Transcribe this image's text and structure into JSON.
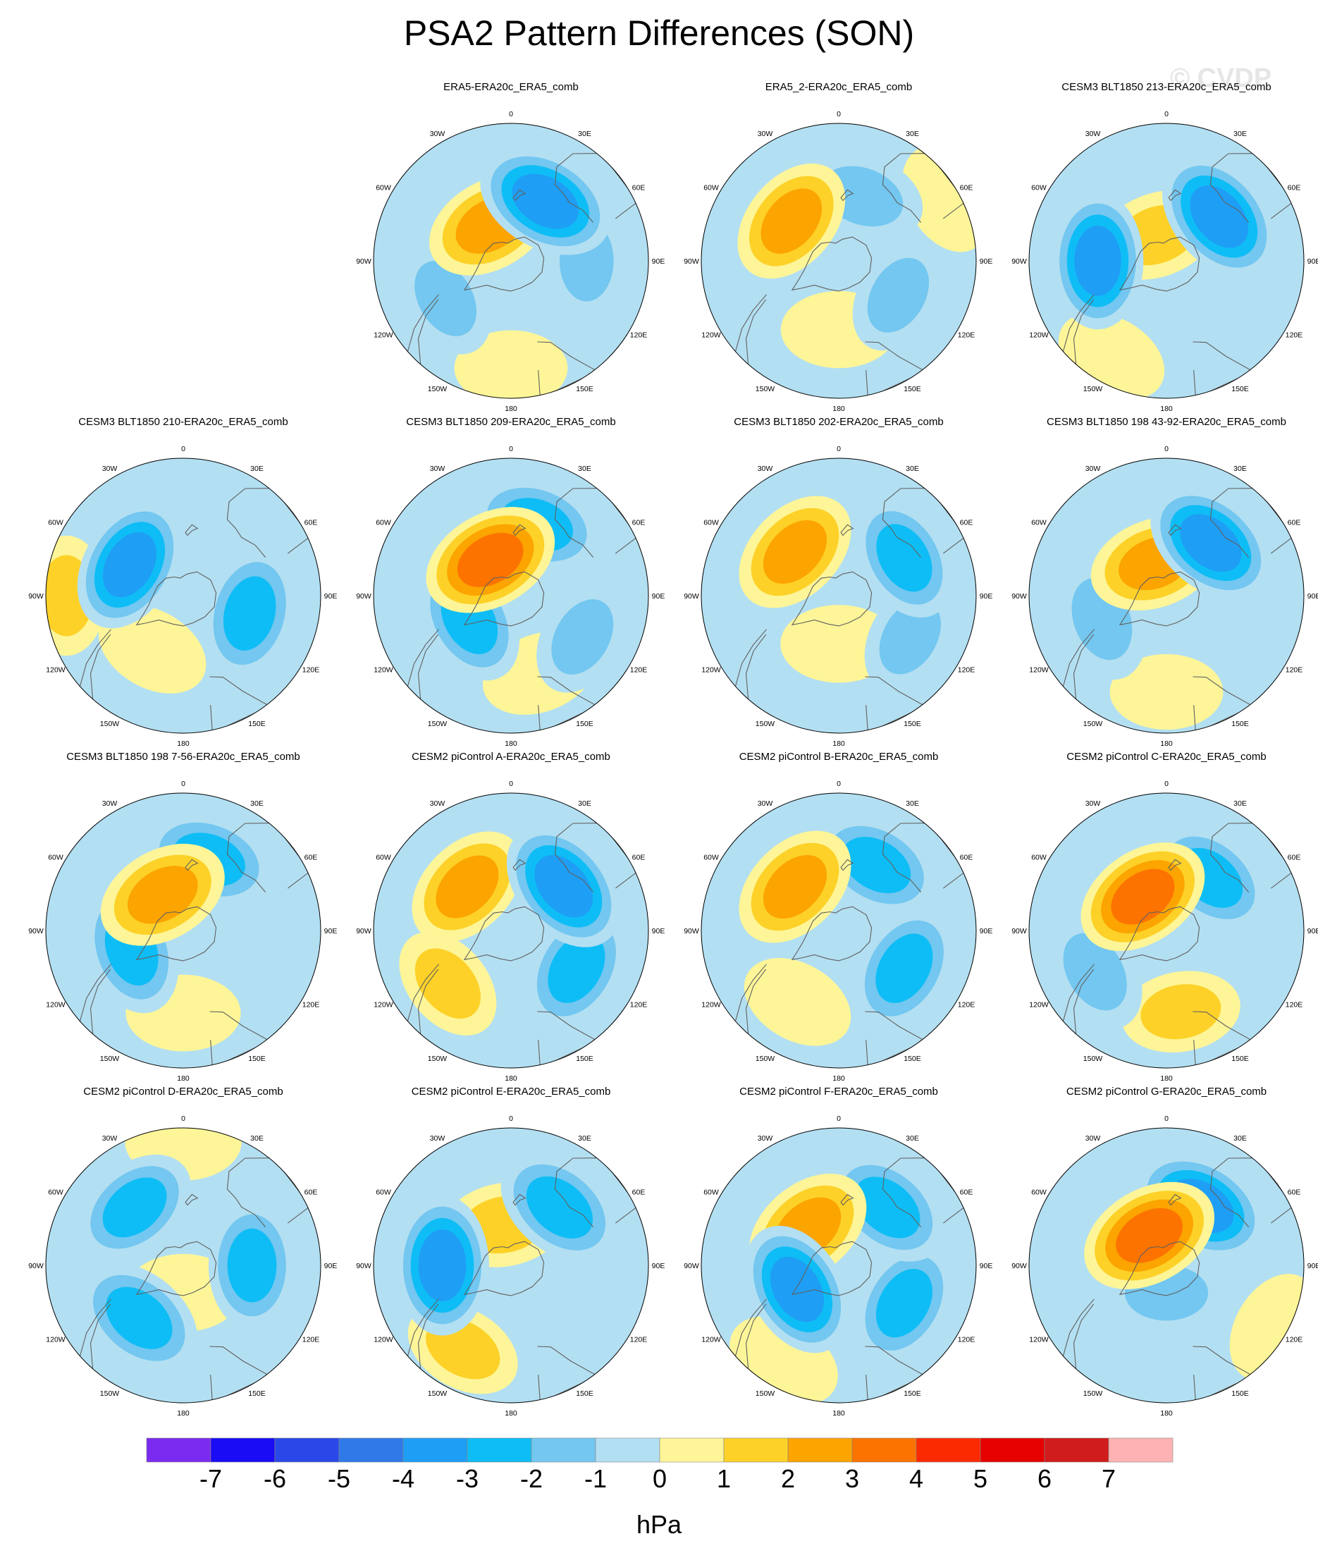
{
  "title": "PSA2 Pattern Differences (SON)",
  "watermark": "© CVDP",
  "lon_labels": [
    "0",
    "30E",
    "60E",
    "90E",
    "120E",
    "150E",
    "180",
    "150W",
    "120W",
    "90W",
    "60W",
    "30W"
  ],
  "colors": {
    "levels": [
      "#7a2bef",
      "#1a0cf5",
      "#2a48e8",
      "#2f79e8",
      "#1f9ef5",
      "#0ebdf5",
      "#73c7f0",
      "#b3dff2",
      "#fdf598",
      "#fdd128",
      "#fca400",
      "#fc7300",
      "#fc2a00",
      "#e60000",
      "#d01c1c",
      "#fdb3b3"
    ],
    "coast": "#606060"
  },
  "chart_data": {
    "type": "contour-map",
    "projection": "south-polar-stereographic",
    "colorbar": {
      "ticks": [
        "-7",
        "-6",
        "-5",
        "-4",
        "-3",
        "-2",
        "-1",
        "0",
        "1",
        "2",
        "3",
        "4",
        "5",
        "6",
        "7"
      ],
      "unit": "hPa"
    },
    "panels": [
      {
        "title": "ERA5-ERA20c_ERA5_comb",
        "row": 0,
        "col": 1,
        "blobs": [
          {
            "lon": 0,
            "r": 0.78,
            "v": 0.4
          },
          {
            "lon": 300,
            "r": 0.55,
            "v": -1.2
          },
          {
            "lon": 210,
            "r": 0.3,
            "v": 2.6
          },
          {
            "lon": 150,
            "r": 0.5,
            "v": -3.6
          },
          {
            "lon": 90,
            "r": 0.55,
            "v": -1.2
          }
        ]
      },
      {
        "title": "ERA5_2-ERA20c_ERA5_comb",
        "row": 0,
        "col": 2,
        "blobs": [
          {
            "lon": 0,
            "r": 0.5,
            "v": 0.7
          },
          {
            "lon": 230,
            "r": 0.45,
            "v": 2.5
          },
          {
            "lon": 160,
            "r": 0.5,
            "v": -1.8
          },
          {
            "lon": 60,
            "r": 0.5,
            "v": -1.1
          },
          {
            "lon": 120,
            "r": 0.9,
            "v": 0.5
          }
        ]
      },
      {
        "title": "CESM3 BLT1850 213-ERA20c_ERA5_comb",
        "row": 0,
        "col": 3,
        "blobs": [
          {
            "lon": 270,
            "r": 0.5,
            "v": -3.2
          },
          {
            "lon": 200,
            "r": 0.2,
            "v": 1.8
          },
          {
            "lon": 130,
            "r": 0.5,
            "v": -3.4
          },
          {
            "lon": 330,
            "r": 0.8,
            "v": 0.5
          }
        ]
      },
      {
        "title": "CESM3 BLT1850 210-ERA20c_ERA5_comb",
        "row": 1,
        "col": 0,
        "blobs": [
          {
            "lon": 240,
            "r": 0.45,
            "v": -3.2
          },
          {
            "lon": 75,
            "r": 0.5,
            "v": -2.8
          },
          {
            "lon": 270,
            "r": 0.85,
            "v": 1.2
          },
          {
            "lon": 330,
            "r": 0.45,
            "v": 0.7
          }
        ]
      },
      {
        "title": "CESM3 BLT1850 209-ERA20c_ERA5_comb",
        "row": 1,
        "col": 1,
        "blobs": [
          {
            "lon": 210,
            "r": 0.3,
            "v": 3.4
          },
          {
            "lon": 160,
            "r": 0.55,
            "v": -2.6
          },
          {
            "lon": 300,
            "r": 0.35,
            "v": -2.5
          },
          {
            "lon": 20,
            "r": 0.6,
            "v": 0.8
          },
          {
            "lon": 60,
            "r": 0.6,
            "v": -1.2
          }
        ]
      },
      {
        "title": "CESM3 BLT1850 202-ERA20c_ERA5_comb",
        "row": 1,
        "col": 2,
        "blobs": [
          {
            "lon": 225,
            "r": 0.45,
            "v": 2.6
          },
          {
            "lon": 120,
            "r": 0.55,
            "v": -2.2
          },
          {
            "lon": 0,
            "r": 0.35,
            "v": 0.8
          },
          {
            "lon": 60,
            "r": 0.6,
            "v": -1.1
          }
        ]
      },
      {
        "title": "CESM3 BLT1850 198 43-92-ERA20c_ERA5_comb",
        "row": 1,
        "col": 3,
        "blobs": [
          {
            "lon": 200,
            "r": 0.25,
            "v": 2.6
          },
          {
            "lon": 140,
            "r": 0.5,
            "v": -3.2
          },
          {
            "lon": 290,
            "r": 0.5,
            "v": -1.8
          },
          {
            "lon": 0,
            "r": 0.7,
            "v": 0.4
          }
        ]
      },
      {
        "title": "CESM3 BLT1850 198 7-56-ERA20c_ERA5_comb",
        "row": 2,
        "col": 0,
        "blobs": [
          {
            "lon": 210,
            "r": 0.3,
            "v": 2.8
          },
          {
            "lon": 160,
            "r": 0.55,
            "v": -2.6
          },
          {
            "lon": 290,
            "r": 0.4,
            "v": -2.6
          },
          {
            "lon": 0,
            "r": 0.6,
            "v": 0.6
          }
        ]
      },
      {
        "title": "CESM2 piControl A-ERA20c_ERA5_comb",
        "row": 2,
        "col": 1,
        "blobs": [
          {
            "lon": 225,
            "r": 0.45,
            "v": 2.4
          },
          {
            "lon": 130,
            "r": 0.5,
            "v": -3.4
          },
          {
            "lon": 60,
            "r": 0.55,
            "v": -2.6
          },
          {
            "lon": 310,
            "r": 0.6,
            "v": 1.0
          }
        ]
      },
      {
        "title": "CESM2 piControl B-ERA20c_ERA5_comb",
        "row": 2,
        "col": 2,
        "blobs": [
          {
            "lon": 225,
            "r": 0.45,
            "v": 2.6
          },
          {
            "lon": 150,
            "r": 0.55,
            "v": -2.4
          },
          {
            "lon": 60,
            "r": 0.55,
            "v": -2.6
          },
          {
            "lon": 330,
            "r": 0.6,
            "v": 0.6
          }
        ]
      },
      {
        "title": "CESM2 piControl C-ERA20c_ERA5_comb",
        "row": 2,
        "col": 3,
        "blobs": [
          {
            "lon": 215,
            "r": 0.3,
            "v": 3.2
          },
          {
            "lon": 140,
            "r": 0.5,
            "v": -2.2
          },
          {
            "lon": 300,
            "r": 0.6,
            "v": -1.6
          },
          {
            "lon": 10,
            "r": 0.6,
            "v": 1.2
          }
        ]
      },
      {
        "title": "CESM2 piControl D-ERA20c_ERA5_comb",
        "row": 3,
        "col": 0,
        "blobs": [
          {
            "lon": 320,
            "r": 0.5,
            "v": -2.8
          },
          {
            "lon": 90,
            "r": 0.5,
            "v": -2.4
          },
          {
            "lon": 220,
            "r": 0.55,
            "v": -2.2
          },
          {
            "lon": 180,
            "r": 0.9,
            "v": 0.8
          },
          {
            "lon": 0,
            "r": 0.2,
            "v": 0.8
          }
        ]
      },
      {
        "title": "CESM2 piControl E-ERA20c_ERA5_comb",
        "row": 3,
        "col": 1,
        "blobs": [
          {
            "lon": 270,
            "r": 0.5,
            "v": -3.6
          },
          {
            "lon": 190,
            "r": 0.3,
            "v": 1.8
          },
          {
            "lon": 140,
            "r": 0.55,
            "v": -2.8
          },
          {
            "lon": 330,
            "r": 0.7,
            "v": 1.0
          }
        ]
      },
      {
        "title": "CESM2 piControl F-ERA20c_ERA5_comb",
        "row": 3,
        "col": 2,
        "blobs": [
          {
            "lon": 300,
            "r": 0.35,
            "v": -3.2
          },
          {
            "lon": 220,
            "r": 0.35,
            "v": 2.8
          },
          {
            "lon": 140,
            "r": 0.55,
            "v": -2.6
          },
          {
            "lon": 60,
            "r": 0.55,
            "v": -2.4
          },
          {
            "lon": 330,
            "r": 0.8,
            "v": 0.8
          }
        ]
      },
      {
        "title": "CESM2 piControl G-ERA20c_ERA5_comb",
        "row": 3,
        "col": 3,
        "blobs": [
          {
            "lon": 210,
            "r": 0.25,
            "v": 3.6
          },
          {
            "lon": 150,
            "r": 0.5,
            "v": -3.4
          },
          {
            "lon": 0,
            "r": 0.2,
            "v": -1.6
          },
          {
            "lon": 60,
            "r": 0.9,
            "v": 0.6
          }
        ]
      }
    ]
  }
}
